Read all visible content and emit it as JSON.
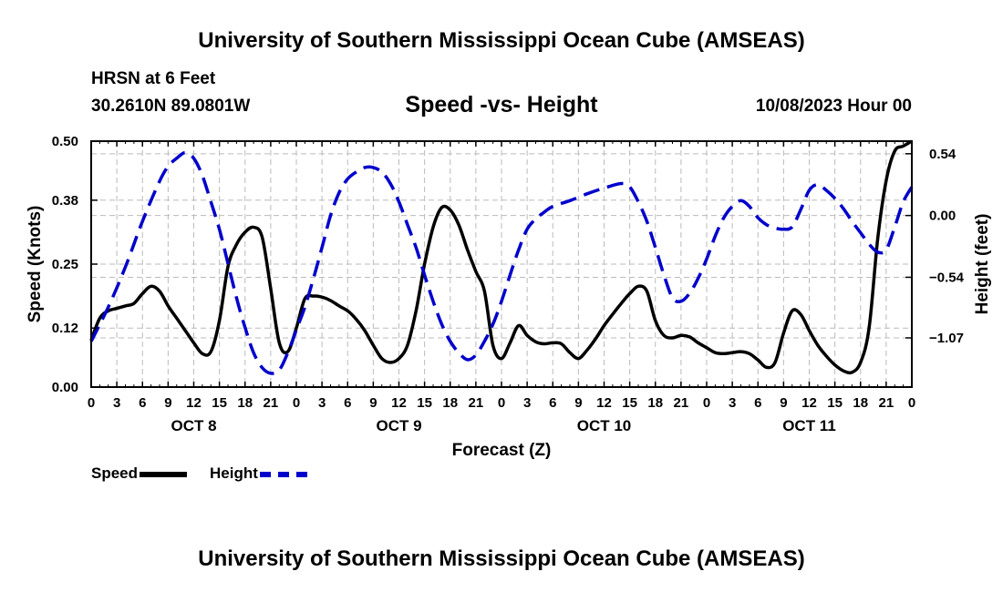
{
  "header": {
    "title": "University of Southern Mississippi Ocean Cube (AMSEAS)",
    "station": "HRSN at 6 Feet",
    "coords": "30.2610N  89.0801W",
    "chart_title": "Speed -vs- Height",
    "datetime": "10/08/2023 Hour 00"
  },
  "footer": {
    "title": "University of Southern Mississippi Ocean Cube (AMSEAS)"
  },
  "legend": {
    "speed_label": "Speed",
    "height_label": "Height"
  },
  "colors": {
    "speed": "#000000",
    "height": "#0000cc",
    "grid": "#bbbbbb"
  },
  "chart_data": {
    "type": "line",
    "title": "Speed -vs- Height",
    "xlabel": "Forecast (Z)",
    "ylabel": "Speed (Knots)",
    "y2label": "Height (feet)",
    "xlim": [
      0,
      96
    ],
    "ylim": [
      0,
      0.5
    ],
    "y2lim": [
      -1.5,
      0.65
    ],
    "x_ticks": [
      0,
      3,
      6,
      9,
      12,
      15,
      18,
      21,
      24,
      27,
      30,
      33,
      36,
      39,
      42,
      45,
      48,
      51,
      54,
      57,
      60,
      63,
      66,
      69,
      72,
      75,
      78,
      81,
      84,
      87,
      90,
      93,
      96
    ],
    "x_tick_labels": [
      "0",
      "3",
      "6",
      "9",
      "12",
      "15",
      "18",
      "21",
      "0",
      "3",
      "6",
      "9",
      "12",
      "15",
      "18",
      "21",
      "0",
      "3",
      "6",
      "9",
      "12",
      "15",
      "18",
      "21",
      "0",
      "3",
      "6",
      "9",
      "12",
      "15",
      "18",
      "21",
      "0"
    ],
    "day_labels": [
      {
        "x": 12,
        "label": "OCT 8"
      },
      {
        "x": 36,
        "label": "OCT 9"
      },
      {
        "x": 60,
        "label": "OCT 10"
      },
      {
        "x": 84,
        "label": "OCT 11"
      }
    ],
    "y_ticks": [
      0.0,
      0.12,
      0.25,
      0.38,
      0.5
    ],
    "y_tick_labels": [
      "0.00",
      "0.12",
      "0.25",
      "0.38",
      "0.50"
    ],
    "y2_ticks": [
      0.54,
      0.0,
      -0.54,
      -1.07
    ],
    "y2_tick_labels": [
      "0.54",
      "0.00",
      "−0.54",
      "−1.07"
    ],
    "series": [
      {
        "name": "Speed",
        "axis": "left",
        "style": "solid",
        "x": [
          0,
          1,
          2,
          3,
          4,
          5,
          6,
          7,
          8,
          9,
          10,
          11,
          12,
          13,
          14,
          15,
          16,
          17,
          18,
          19,
          20,
          21,
          22,
          23,
          24,
          25,
          26,
          27,
          28,
          29,
          30,
          31,
          32,
          33,
          34,
          35,
          36,
          37,
          38,
          39,
          40,
          41,
          42,
          43,
          44,
          45,
          46,
          47,
          48,
          49,
          50,
          51,
          52,
          53,
          54,
          55,
          56,
          57,
          58,
          59,
          60,
          61,
          62,
          63,
          64,
          65,
          66,
          67,
          68,
          69,
          70,
          71,
          72,
          73,
          74,
          75,
          76,
          77,
          78,
          79,
          80,
          81,
          82,
          83,
          84,
          85,
          86,
          87,
          88,
          89,
          90,
          91,
          92,
          93,
          94,
          95,
          96
        ],
        "values": [
          0.095,
          0.14,
          0.155,
          0.16,
          0.165,
          0.17,
          0.19,
          0.205,
          0.195,
          0.165,
          0.14,
          0.115,
          0.09,
          0.068,
          0.072,
          0.135,
          0.245,
          0.29,
          0.315,
          0.325,
          0.305,
          0.2,
          0.09,
          0.072,
          0.12,
          0.18,
          0.185,
          0.183,
          0.176,
          0.165,
          0.155,
          0.138,
          0.115,
          0.085,
          0.058,
          0.05,
          0.058,
          0.085,
          0.155,
          0.25,
          0.325,
          0.365,
          0.36,
          0.33,
          0.28,
          0.235,
          0.195,
          0.085,
          0.058,
          0.09,
          0.125,
          0.105,
          0.092,
          0.088,
          0.09,
          0.088,
          0.07,
          0.058,
          0.075,
          0.098,
          0.125,
          0.148,
          0.17,
          0.19,
          0.205,
          0.195,
          0.135,
          0.105,
          0.1,
          0.105,
          0.102,
          0.09,
          0.08,
          0.07,
          0.068,
          0.07,
          0.072,
          0.068,
          0.055,
          0.04,
          0.05,
          0.11,
          0.155,
          0.148,
          0.115,
          0.085,
          0.063,
          0.045,
          0.033,
          0.03,
          0.05,
          0.12,
          0.3,
          0.42,
          0.48,
          0.49,
          0.5
        ]
      },
      {
        "name": "Height",
        "axis": "right",
        "style": "dashed",
        "x": [
          0,
          2,
          4,
          6,
          8,
          9,
          10,
          11,
          12,
          13,
          14,
          15,
          16,
          17,
          18,
          19,
          20,
          21,
          22,
          23,
          24,
          25,
          26,
          27,
          28,
          29,
          30,
          31,
          32,
          33,
          34,
          35,
          36,
          37,
          38,
          39,
          40,
          41,
          42,
          43,
          44,
          45,
          46,
          47,
          48,
          49,
          50,
          51,
          52,
          53,
          54,
          56,
          58,
          60,
          62,
          63,
          64,
          65,
          66,
          67,
          68,
          69,
          70,
          71,
          72,
          73,
          74,
          75,
          76,
          77,
          78,
          79,
          80,
          81,
          82,
          83,
          84,
          85,
          86,
          87,
          88,
          89,
          90,
          91,
          92,
          93,
          94,
          95,
          96
        ],
        "values": [
          -1.1,
          -0.8,
          -0.45,
          -0.05,
          0.3,
          0.43,
          0.5,
          0.55,
          0.5,
          0.35,
          0.12,
          -0.12,
          -0.42,
          -0.72,
          -0.98,
          -1.2,
          -1.33,
          -1.38,
          -1.35,
          -1.2,
          -1.0,
          -0.8,
          -0.55,
          -0.28,
          0.0,
          0.2,
          0.32,
          0.38,
          0.42,
          0.42,
          0.38,
          0.28,
          0.12,
          -0.08,
          -0.28,
          -0.52,
          -0.75,
          -0.95,
          -1.1,
          -1.2,
          -1.26,
          -1.22,
          -1.1,
          -0.95,
          -0.75,
          -0.52,
          -0.3,
          -0.12,
          -0.03,
          0.03,
          0.08,
          0.13,
          0.19,
          0.24,
          0.28,
          0.25,
          0.12,
          -0.05,
          -0.28,
          -0.52,
          -0.72,
          -0.75,
          -0.68,
          -0.55,
          -0.38,
          -0.18,
          -0.02,
          0.08,
          0.13,
          0.08,
          -0.02,
          -0.08,
          -0.11,
          -0.12,
          -0.1,
          0.05,
          0.22,
          0.27,
          0.22,
          0.15,
          0.06,
          -0.05,
          -0.15,
          -0.25,
          -0.32,
          -0.3,
          -0.1,
          0.12,
          0.25
        ]
      }
    ]
  }
}
